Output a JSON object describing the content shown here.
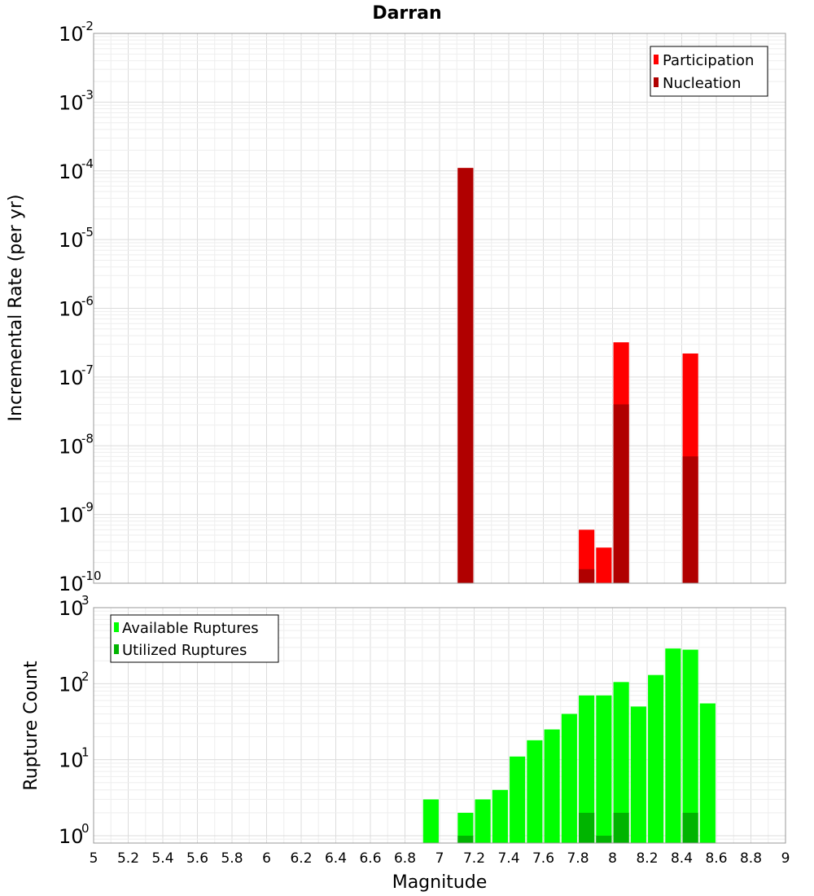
{
  "chart_data": [
    {
      "type": "bar",
      "title": "Darran",
      "xlabel": "",
      "ylabel": "Incremental Rate (per yr)",
      "xlim": [
        5,
        9
      ],
      "ylim": [
        1e-10,
        0.01
      ],
      "yscale": "log",
      "y_ticks": [
        {
          "base": "10",
          "exp": "-10"
        },
        {
          "base": "10",
          "exp": "-9"
        },
        {
          "base": "10",
          "exp": "-8"
        },
        {
          "base": "10",
          "exp": "-7"
        },
        {
          "base": "10",
          "exp": "-6"
        },
        {
          "base": "10",
          "exp": "-5"
        },
        {
          "base": "10",
          "exp": "-4"
        },
        {
          "base": "10",
          "exp": "-3"
        },
        {
          "base": "10",
          "exp": "-2"
        }
      ],
      "grid": true,
      "legend_position": "top-right",
      "bar_width": 0.09,
      "series": [
        {
          "name": "Participation",
          "color": "#ff0000",
          "x": [
            7.15,
            7.85,
            7.95,
            8.05,
            8.45
          ],
          "values": [
            0.00011,
            6e-10,
            3.3e-10,
            3.2e-07,
            2.2e-07
          ]
        },
        {
          "name": "Nucleation",
          "color": "#b00000",
          "x": [
            7.15,
            7.85,
            8.05,
            8.45
          ],
          "values": [
            0.00011,
            1.6e-10,
            4e-08,
            7e-09
          ]
        }
      ]
    },
    {
      "type": "bar",
      "title": "",
      "xlabel": "Magnitude",
      "ylabel": "Rupture Count",
      "xlim": [
        5,
        9
      ],
      "ylim": [
        0.8,
        1000
      ],
      "yscale": "log",
      "y_ticks": [
        {
          "value": 1,
          "base": "10",
          "exp": "0"
        },
        {
          "value": 10,
          "base": "10",
          "exp": "1"
        },
        {
          "value": 100,
          "base": "10",
          "exp": "2"
        },
        {
          "value": 1000,
          "base": "10",
          "exp": "3"
        }
      ],
      "x_ticks": [
        "5",
        "5.2",
        "5.4",
        "5.6",
        "5.8",
        "6",
        "6.2",
        "6.4",
        "6.6",
        "6.8",
        "7",
        "7.2",
        "7.4",
        "7.6",
        "7.8",
        "8",
        "8.2",
        "8.4",
        "8.6",
        "8.8",
        "9"
      ],
      "grid": true,
      "legend_position": "top-left",
      "bar_width": 0.09,
      "series": [
        {
          "name": "Available Ruptures",
          "color": "#00ff00",
          "x": [
            6.95,
            7.15,
            7.25,
            7.35,
            7.45,
            7.55,
            7.65,
            7.75,
            7.85,
            7.95,
            8.05,
            8.15,
            8.25,
            8.35,
            8.45,
            8.55
          ],
          "values": [
            3,
            2,
            3,
            4,
            11,
            18,
            25,
            40,
            70,
            70,
            105,
            50,
            130,
            290,
            280,
            55
          ]
        },
        {
          "name": "Utilized Ruptures",
          "color": "#00b400",
          "x": [
            7.15,
            7.85,
            7.95,
            8.05,
            8.45
          ],
          "values": [
            1,
            2,
            1,
            2,
            2
          ]
        }
      ]
    }
  ]
}
